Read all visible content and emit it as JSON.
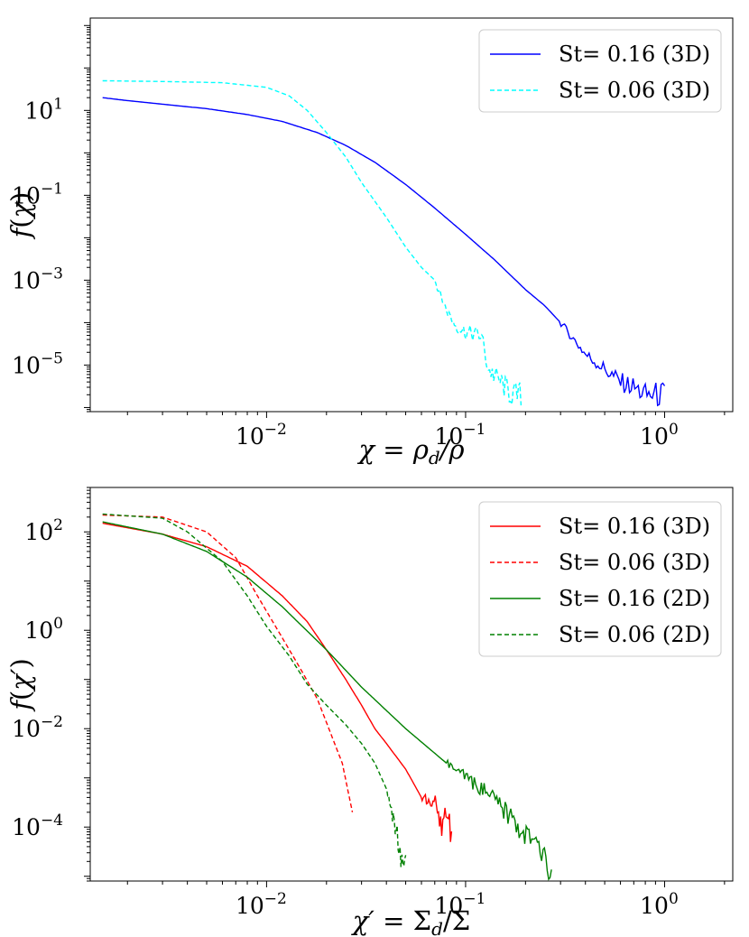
{
  "chart_data": [
    {
      "type": "line",
      "xscale": "log",
      "yscale": "log",
      "xlim": [
        0.0013,
        2.2
      ],
      "ylim": [
        8e-07,
        1500
      ],
      "xlabel": "χ = ρ_d/ρ",
      "xlabel_parts": {
        "lhs": "χ",
        "eq": " = ",
        "num": "ρ",
        "num_sub": "d",
        "den": "/ρ"
      },
      "ylabel": "f(χ)",
      "ylabel_parts": {
        "f": "f",
        "open": "(",
        "var": "χ",
        "close": ")"
      },
      "xticks": [
        {
          "value": 0.01,
          "base": "10",
          "exp": "−2"
        },
        {
          "value": 0.1,
          "base": "10",
          "exp": "−1"
        },
        {
          "value": 1,
          "base": "10",
          "exp": "0"
        }
      ],
      "yticks": [
        {
          "value": 10,
          "base": "10",
          "exp": "1"
        },
        {
          "value": 0.1,
          "base": "10",
          "exp": "−1"
        },
        {
          "value": 0.001,
          "base": "10",
          "exp": "−3"
        },
        {
          "value": 1e-05,
          "base": "10",
          "exp": "−5"
        }
      ],
      "legend_position": "top-right",
      "series": [
        {
          "name": "St= 0.16 (3D)",
          "color": "#0000ff",
          "linestyle": "solid",
          "x": [
            0.0015,
            0.002,
            0.003,
            0.005,
            0.008,
            0.012,
            0.018,
            0.025,
            0.035,
            0.05,
            0.07,
            0.1,
            0.14,
            0.2,
            0.25,
            0.3,
            0.35,
            0.4,
            0.5,
            0.6,
            0.7,
            0.8,
            1.0
          ],
          "y": [
            20,
            17,
            14,
            11,
            8,
            5.5,
            3.0,
            1.5,
            0.6,
            0.18,
            0.05,
            0.012,
            0.003,
            0.0006,
            0.00025,
            0.0001,
            4e-05,
            1.8e-05,
            8e-06,
            4e-06,
            3e-06,
            2e-06,
            2e-06
          ],
          "noisy_tail_from": 0.3
        },
        {
          "name": "St= 0.06 (3D)",
          "color": "#00ffff",
          "linestyle": "dashed",
          "x": [
            0.0015,
            0.003,
            0.006,
            0.01,
            0.013,
            0.016,
            0.02,
            0.025,
            0.03,
            0.04,
            0.05,
            0.06,
            0.07,
            0.08,
            0.09,
            0.1,
            0.12,
            0.13,
            0.15,
            0.17,
            0.19
          ],
          "y": [
            50,
            48,
            45,
            35,
            22,
            10,
            3,
            0.8,
            0.2,
            0.03,
            0.006,
            0.002,
            0.001,
            0.0002,
            8e-05,
            6e-05,
            5e-05,
            8e-06,
            4e-06,
            2e-06,
            2e-06
          ],
          "noisy_tail_from": 0.07
        }
      ]
    },
    {
      "type": "line",
      "xscale": "log",
      "yscale": "log",
      "xlim": [
        0.0013,
        2.2
      ],
      "ylim": [
        8e-06,
        800
      ],
      "xlabel": "χ′ = Σ_d/Σ",
      "xlabel_parts": {
        "lhs": "χ′",
        "eq": " = ",
        "num": "Σ",
        "num_sub": "d",
        "den": "/Σ"
      },
      "ylabel": "f(χ′)",
      "ylabel_parts": {
        "f": "f",
        "open": "(",
        "var": "χ′",
        "close": ")"
      },
      "xticks": [
        {
          "value": 0.01,
          "base": "10",
          "exp": "−2"
        },
        {
          "value": 0.1,
          "base": "10",
          "exp": "−1"
        },
        {
          "value": 1,
          "base": "10",
          "exp": "0"
        }
      ],
      "yticks": [
        {
          "value": 100,
          "base": "10",
          "exp": "2"
        },
        {
          "value": 1,
          "base": "10",
          "exp": "0"
        },
        {
          "value": 0.01,
          "base": "10",
          "exp": "−2"
        },
        {
          "value": 0.0001,
          "base": "10",
          "exp": "−4"
        }
      ],
      "legend_position": "top-right",
      "series": [
        {
          "name": "St= 0.16 (3D)",
          "color": "#ff0000",
          "linestyle": "solid",
          "x": [
            0.0015,
            0.003,
            0.005,
            0.008,
            0.012,
            0.016,
            0.02,
            0.025,
            0.03,
            0.035,
            0.04,
            0.05,
            0.06,
            0.07,
            0.075,
            0.08,
            0.085
          ],
          "y": [
            150,
            90,
            50,
            20,
            5,
            1.5,
            0.4,
            0.1,
            0.03,
            0.01,
            0.005,
            0.0015,
            0.0004,
            0.0003,
            0.0001,
            0.0002,
            8e-05
          ],
          "noisy_tail_from": 0.06
        },
        {
          "name": "St= 0.06 (3D)",
          "color": "#ff0000",
          "linestyle": "dashed",
          "x": [
            0.0015,
            0.003,
            0.005,
            0.007,
            0.009,
            0.012,
            0.015,
            0.018,
            0.021,
            0.024,
            0.027
          ],
          "y": [
            220,
            200,
            100,
            30,
            5,
            0.7,
            0.15,
            0.04,
            0.008,
            0.002,
            0.0002
          ]
        },
        {
          "name": "St= 0.16 (2D)",
          "color": "#008000",
          "linestyle": "solid",
          "x": [
            0.0015,
            0.003,
            0.005,
            0.008,
            0.012,
            0.02,
            0.03,
            0.05,
            0.08,
            0.12,
            0.16,
            0.2,
            0.24,
            0.27
          ],
          "y": [
            160,
            90,
            40,
            12,
            3,
            0.4,
            0.07,
            0.01,
            0.002,
            0.0006,
            0.0002,
            7e-05,
            3e-05,
            1e-05
          ],
          "noisy_tail_from": 0.08
        },
        {
          "name": "St= 0.06 (2D)",
          "color": "#008000",
          "linestyle": "dashed",
          "x": [
            0.0015,
            0.003,
            0.004,
            0.006,
            0.008,
            0.01,
            0.013,
            0.016,
            0.02,
            0.025,
            0.03,
            0.035,
            0.04,
            0.045,
            0.048,
            0.05
          ],
          "y": [
            230,
            190,
            100,
            25,
            5,
            1.2,
            0.3,
            0.08,
            0.03,
            0.012,
            0.005,
            0.002,
            0.0006,
            8e-05,
            2e-05,
            1.5e-05
          ],
          "noisy_tail_from": 0.04
        }
      ]
    }
  ]
}
